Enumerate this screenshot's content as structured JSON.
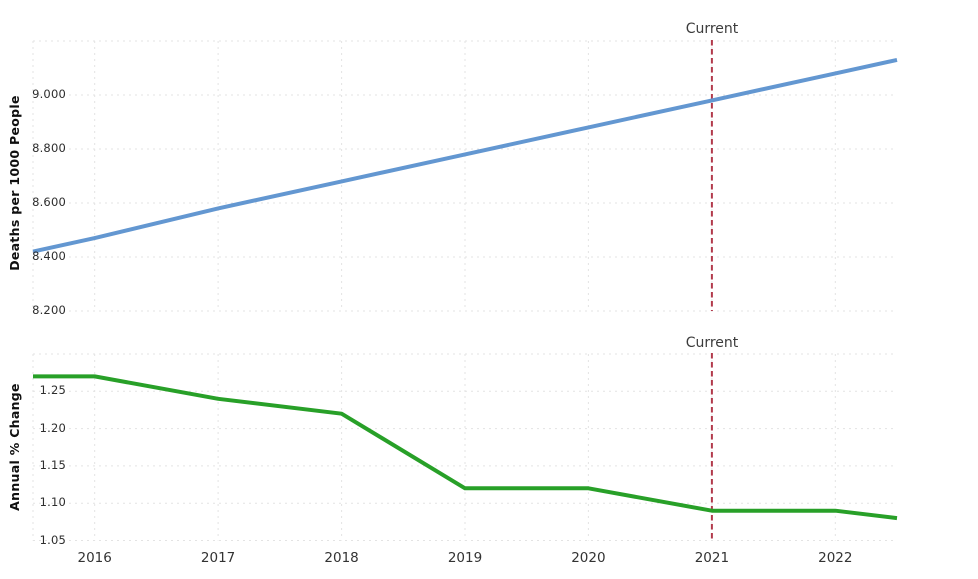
{
  "annotation": {
    "label": "Current",
    "year": 2021,
    "color": "#b23a4c"
  },
  "axis": {
    "xlim": [
      2015.5,
      2022.5
    ],
    "x_ticks": [
      "2016",
      "2017",
      "2018",
      "2019",
      "2020",
      "2021",
      "2022"
    ],
    "x_tick_values": [
      2016,
      2017,
      2018,
      2019,
      2020,
      2021,
      2022
    ]
  },
  "colors": {
    "grid": "#e3e3e3",
    "blue_line": "#6397d1",
    "green_line": "#28a028"
  },
  "chart_data": [
    {
      "type": "line",
      "name": "deaths-per-1000-chart",
      "ylabel": "Deaths per 1000 People",
      "ylim": [
        8.15,
        9.2
      ],
      "yticks": [
        8.2,
        8.4,
        8.6,
        8.8,
        9.0
      ],
      "ytick_labels": [
        "8.200",
        "8.400",
        "8.600",
        "8.800",
        "9.000"
      ],
      "grid_extra_yticks": [
        9.2
      ],
      "grid": true,
      "legend": "none",
      "show_x_tick_labels": false,
      "x": [
        2015.5,
        2016,
        2017,
        2018,
        2019,
        2020,
        2021,
        2022,
        2022.5
      ],
      "series": [
        {
          "name": "deaths-per-1000-people",
          "color": "#6397d1",
          "values": [
            8.42,
            8.47,
            8.58,
            8.68,
            8.78,
            8.88,
            8.98,
            9.08,
            9.13
          ]
        }
      ]
    },
    {
      "type": "line",
      "name": "annual-percent-change-chart",
      "ylabel": "Annual % Change",
      "ylim": [
        1.05,
        1.3
      ],
      "yticks": [
        1.05,
        1.1,
        1.15,
        1.2,
        1.25
      ],
      "ytick_labels": [
        "1.05",
        "1.10",
        "1.15",
        "1.20",
        "1.25"
      ],
      "grid_extra_yticks": [
        1.3
      ],
      "grid": true,
      "legend": "none",
      "show_x_tick_labels": true,
      "x": [
        2015.5,
        2016,
        2017,
        2018,
        2019,
        2020,
        2021,
        2022,
        2022.5
      ],
      "series": [
        {
          "name": "annual-percent-change",
          "color": "#28a028",
          "values": [
            1.27,
            1.27,
            1.24,
            1.22,
            1.12,
            1.12,
            1.09,
            1.09,
            1.08
          ]
        }
      ]
    }
  ]
}
